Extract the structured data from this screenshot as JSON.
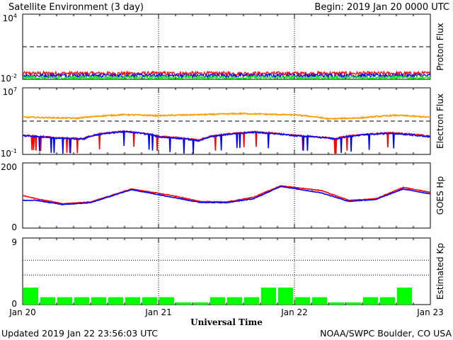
{
  "header": {
    "title": "Satellite Environment (3 day)",
    "begin": "Begin:  2019 Jan 20 0000 UTC"
  },
  "footer": {
    "updated": "Updated 2019 Jan 22 23:56:03 UTC",
    "source": "NOAA/SWPC Boulder, CO USA",
    "xlabel": "Universal Time"
  },
  "x_ticks": [
    "Jan 20",
    "Jan 21",
    "Jan 22",
    "Jan 23"
  ],
  "colors": {
    "red": "#ff0000",
    "blue": "#0000ff",
    "green": "#00ff00",
    "orange": "#ff9900",
    "bar": "#00ff00"
  },
  "chart_data": [
    {
      "type": "line",
      "ylabel": "Proton Flux",
      "y_scale": "log",
      "ylim": [
        0.01,
        10000
      ],
      "y_ticks": [
        {
          "base": "10",
          "exp": "4"
        },
        {
          "base": "10",
          "exp": "-2"
        }
      ],
      "threshold": 10,
      "x_days": [
        0,
        3
      ],
      "series": [
        {
          "color": "red",
          "level": 0.035
        },
        {
          "color": "blue",
          "level": 0.022
        },
        {
          "color": "green",
          "level": 0.014
        }
      ]
    },
    {
      "type": "line",
      "ylabel": "Electron Flux",
      "y_scale": "log",
      "ylim": [
        0.1,
        10000000
      ],
      "y_ticks": [
        {
          "base": "10",
          "exp": "7"
        },
        {
          "base": "10",
          "exp": "-1"
        }
      ],
      "threshold": 1000,
      "x_days": [
        0,
        3
      ],
      "series": [
        {
          "color": "orange",
          "x": [
            0,
            0.4,
            0.75,
            1.0,
            1.4,
            1.6,
            2.0,
            2.25,
            2.5,
            2.75,
            3.0
          ],
          "y": [
            3000,
            2200,
            6000,
            4500,
            6500,
            8000,
            5500,
            1800,
            2500,
            5000,
            2800
          ]
        },
        {
          "color": "red",
          "x": [
            0,
            0.25,
            0.45,
            0.75,
            1.0,
            1.3,
            1.7,
            2.0,
            2.3,
            2.7,
            3.0
          ],
          "y": [
            20,
            10,
            8,
            60,
            15,
            5,
            50,
            20,
            8,
            40,
            15
          ]
        },
        {
          "color": "blue",
          "x": [
            0,
            0.25,
            0.45,
            0.75,
            1.0,
            1.3,
            1.7,
            2.0,
            2.3,
            2.7,
            3.0
          ],
          "y": [
            18,
            9,
            7,
            55,
            13,
            4,
            45,
            18,
            7,
            35,
            12
          ]
        }
      ]
    },
    {
      "type": "line",
      "ylabel": "GOES Hp",
      "y_scale": "linear",
      "ylim": [
        0,
        200
      ],
      "y_ticks": [
        {
          "label": "200",
          "value": 200
        },
        {
          "label": "0",
          "value": 0
        }
      ],
      "x_days": [
        0,
        3
      ],
      "series": [
        {
          "color": "red",
          "x": [
            0,
            0.1,
            0.3,
            0.5,
            0.8,
            1.1,
            1.3,
            1.5,
            1.7,
            1.9,
            2.2,
            2.4,
            2.6,
            2.8,
            3.0
          ],
          "y": [
            100,
            90,
            75,
            80,
            120,
            100,
            82,
            80,
            95,
            130,
            115,
            85,
            90,
            125,
            110
          ]
        },
        {
          "color": "blue",
          "x": [
            0,
            0.1,
            0.3,
            0.5,
            0.8,
            1.1,
            1.3,
            1.5,
            1.7,
            1.9,
            2.2,
            2.4,
            2.6,
            2.8,
            3.0
          ],
          "y": [
            85,
            85,
            72,
            78,
            118,
            95,
            79,
            78,
            90,
            128,
            108,
            82,
            88,
            120,
            105
          ]
        }
      ]
    },
    {
      "type": "bar",
      "ylabel": "Estimated Kp",
      "ylim": [
        0,
        9
      ],
      "y_ticks": [
        {
          "label": "9",
          "value": 9
        },
        {
          "label": "0",
          "value": 0
        }
      ],
      "grid_values": [
        4,
        6
      ],
      "values": [
        2.3,
        1.0,
        1.0,
        1.0,
        1.0,
        1.0,
        1.0,
        1.0,
        1.0,
        0.3,
        0.3,
        1.0,
        1.0,
        1.0,
        2.3,
        2.3,
        1.0,
        1.0,
        0.3,
        0.3,
        1.0,
        1.0,
        2.3,
        0.0
      ]
    }
  ]
}
